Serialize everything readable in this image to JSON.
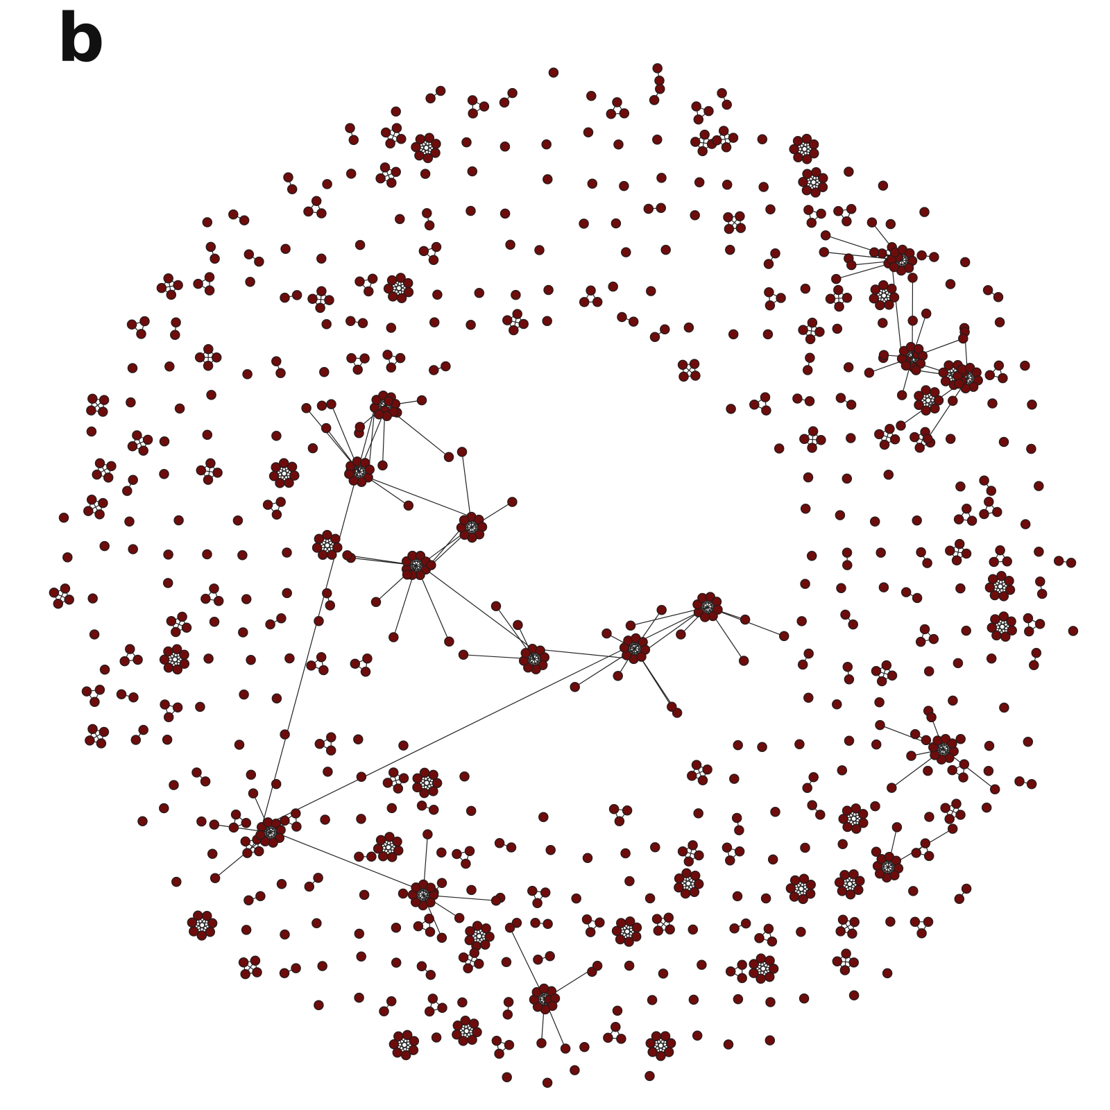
{
  "panel_label": "b"
}
